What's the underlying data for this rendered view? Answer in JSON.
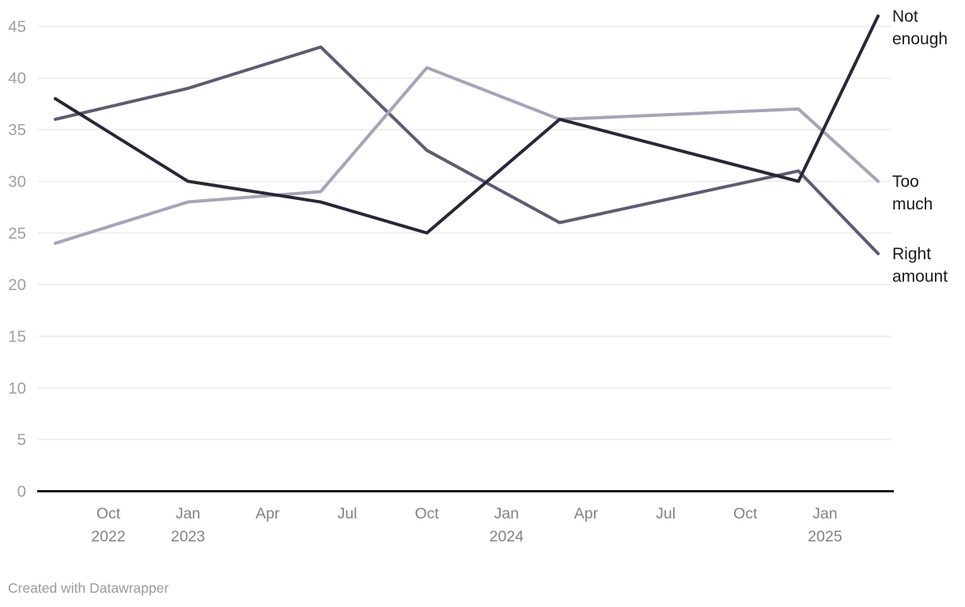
{
  "chart_data": {
    "type": "line",
    "title": "",
    "x_axis": {
      "unit": "months_since_oct_2022",
      "ticks": [
        {
          "label": "Oct",
          "sublabel": "2022",
          "m": 0
        },
        {
          "label": "Jan",
          "sublabel": "2023",
          "m": 3
        },
        {
          "label": "Apr",
          "sublabel": "",
          "m": 6
        },
        {
          "label": "Jul",
          "sublabel": "",
          "m": 9
        },
        {
          "label": "Oct",
          "sublabel": "",
          "m": 12
        },
        {
          "label": "Jan",
          "sublabel": "2024",
          "m": 15
        },
        {
          "label": "Apr",
          "sublabel": "",
          "m": 18
        },
        {
          "label": "Jul",
          "sublabel": "",
          "m": 21
        },
        {
          "label": "Oct",
          "sublabel": "",
          "m": 24
        },
        {
          "label": "Jan",
          "sublabel": "2025",
          "m": 27
        }
      ]
    },
    "y_axis": {
      "ticks": [
        0,
        5,
        10,
        15,
        20,
        25,
        30,
        35,
        40,
        45
      ],
      "ylim": [
        0,
        46
      ],
      "grid": true
    },
    "point_dates": [
      "Aug 2022",
      "Jan 2023",
      "Jun 2023",
      "Oct 2023",
      "Mar 2024",
      "Dec 2024",
      "Mar 2025"
    ],
    "point_months_from_oct2022": [
      -2,
      3,
      8,
      12,
      17,
      26,
      29
    ],
    "series": [
      {
        "name": "Not enough",
        "label_lines": [
          "Not",
          "enough"
        ],
        "color": "#2b2637",
        "values": [
          38,
          30,
          28,
          25,
          36,
          30,
          46
        ]
      },
      {
        "name": "Too much",
        "label_lines": [
          "Too",
          "much"
        ],
        "color": "#a8a3b7",
        "values": [
          24,
          28,
          29,
          41,
          36,
          37,
          30
        ]
      },
      {
        "name": "Right amount",
        "label_lines": [
          "Right",
          "amount"
        ],
        "color": "#605a72",
        "values": [
          36,
          39,
          43,
          33,
          26,
          31,
          23
        ]
      }
    ],
    "legend_position": "right-end-labels"
  },
  "footer": {
    "credit": "Created with Datawrapper"
  },
  "colors": {
    "background": "#ffffff",
    "grid": "#eaeaea",
    "baseline": "#1a1a1a",
    "y_tick_text": "#a0a0a0",
    "x_tick_text": "#828282",
    "series_label_text": "#1b1b1b",
    "credit_text": "#9b9b9b"
  }
}
